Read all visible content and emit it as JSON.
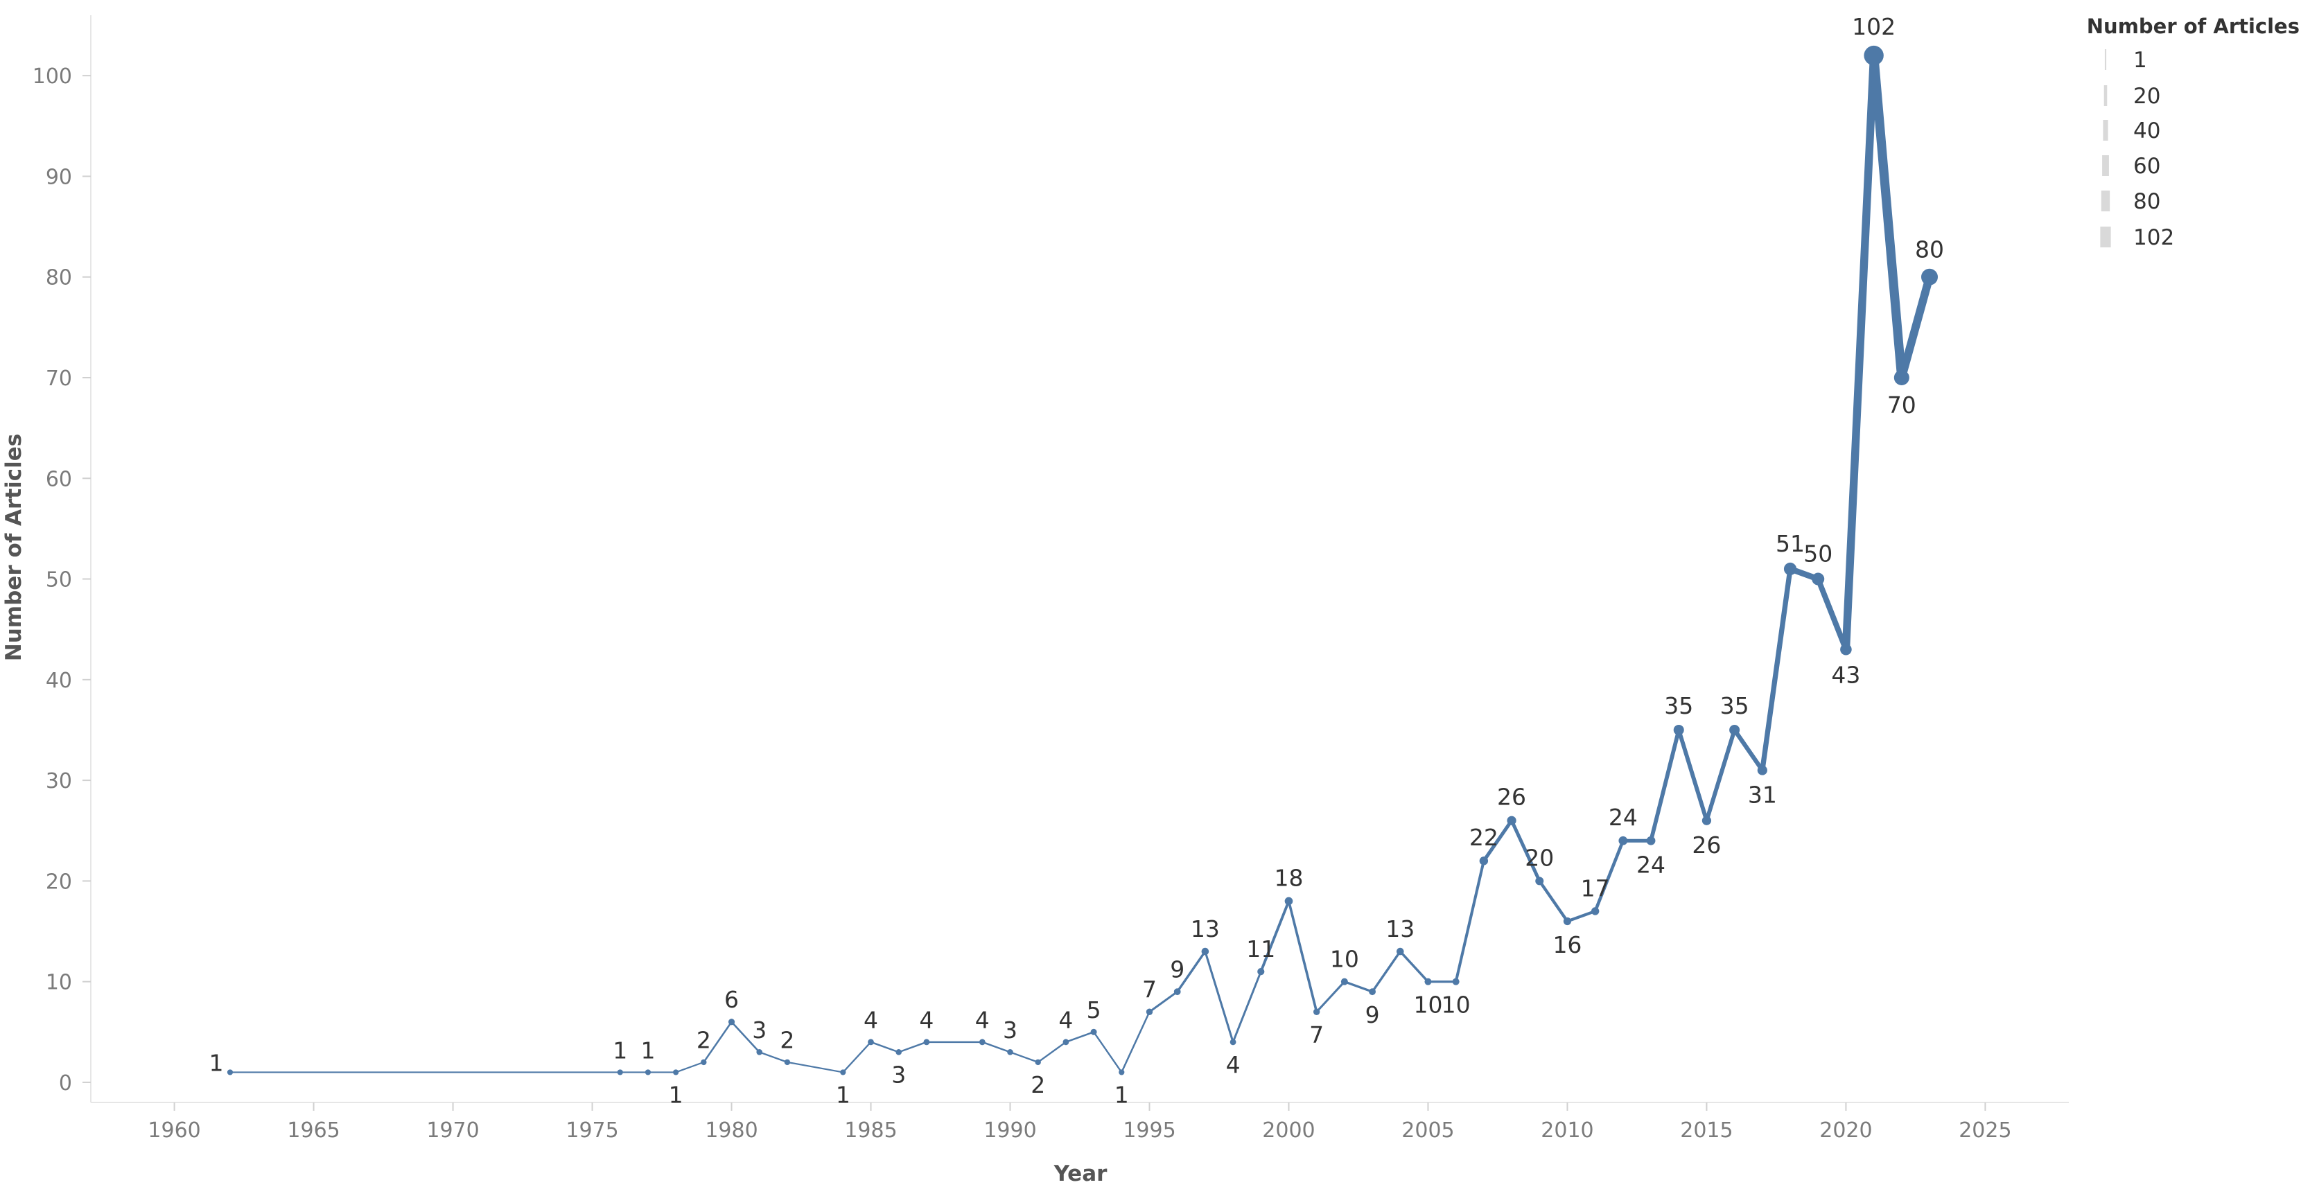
{
  "chart_data": {
    "type": "line",
    "xlabel": "Year",
    "ylabel": "Number of Articles",
    "xlim": [
      1957,
      2028
    ],
    "ylim": [
      -2,
      106
    ],
    "x_ticks": [
      1960,
      1965,
      1970,
      1975,
      1980,
      1985,
      1990,
      1995,
      2000,
      2005,
      2010,
      2015,
      2020,
      2025
    ],
    "y_ticks": [
      0,
      10,
      20,
      30,
      40,
      50,
      60,
      70,
      80,
      90,
      100
    ],
    "line_color": "#4e79a7",
    "series": [
      {
        "x": [
          1962,
          1976,
          1977,
          1978,
          1979,
          1980,
          1981,
          1982,
          1984,
          1985,
          1986,
          1987,
          1989,
          1990,
          1991,
          1992,
          1993,
          1994,
          1995,
          1996,
          1997,
          1998,
          1999,
          2000,
          2001,
          2002,
          2003,
          2004,
          2005,
          2006,
          2007,
          2008,
          2009,
          2010,
          2011,
          2012,
          2013,
          2014,
          2015,
          2016,
          2017,
          2018,
          2019,
          2020,
          2021,
          2022,
          2023
        ],
        "values": [
          1,
          1,
          1,
          1,
          2,
          6,
          3,
          2,
          1,
          4,
          3,
          4,
          4,
          3,
          2,
          4,
          5,
          1,
          7,
          9,
          13,
          4,
          11,
          18,
          7,
          10,
          9,
          13,
          10,
          10,
          22,
          26,
          20,
          16,
          17,
          24,
          24,
          35,
          26,
          35,
          31,
          51,
          50,
          43,
          102,
          70,
          80
        ]
      }
    ],
    "data_labels": [
      "1",
      "1",
      "1",
      "1",
      "2",
      "6",
      "3",
      "2",
      "1",
      "4",
      "3",
      "4",
      "4",
      "3",
      "2",
      "4",
      "5",
      "1",
      "7",
      "9",
      "13",
      "4",
      "11",
      "18",
      "7",
      "10",
      "9",
      "13",
      "10",
      "10",
      "22",
      "26",
      "20",
      "16",
      "17",
      "24",
      "24",
      "35",
      "26",
      "35",
      "31",
      "51",
      "50",
      "43",
      "102",
      "70",
      "80"
    ],
    "legend": {
      "title": "Number of Articles",
      "placement": "top-right",
      "items": [
        "1",
        "20",
        "40",
        "60",
        "80",
        "102"
      ],
      "item_values": [
        1,
        20,
        40,
        60,
        80,
        102
      ]
    },
    "grid": false
  }
}
